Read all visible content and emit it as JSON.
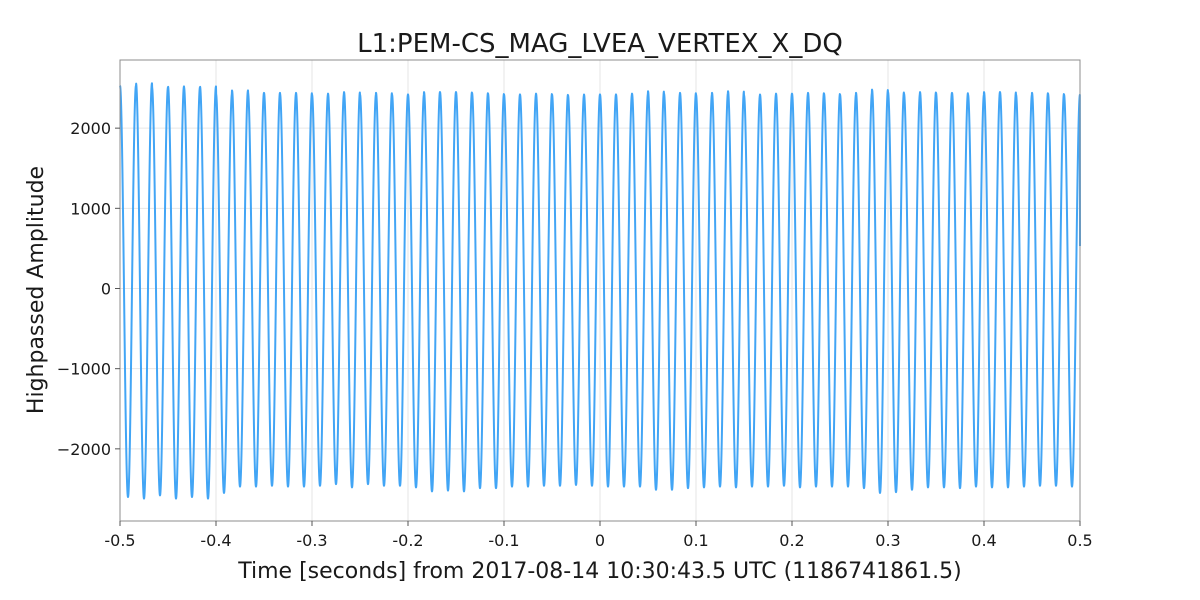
{
  "chart_data": {
    "type": "line",
    "title": "L1:PEM-CS_MAG_LVEA_VERTEX_X_DQ",
    "xlabel": "Time [seconds] from 2017-08-14 10:30:43.5 UTC (1186741861.5)",
    "ylabel": "Highpassed Amplitude",
    "xlim": [
      -0.5,
      0.5
    ],
    "ylim": [
      -2900,
      2850
    ],
    "xticks": [
      {
        "value": -0.5,
        "label": "-0.5"
      },
      {
        "value": -0.4,
        "label": "-0.4"
      },
      {
        "value": -0.3,
        "label": "-0.3"
      },
      {
        "value": -0.2,
        "label": "-0.2"
      },
      {
        "value": -0.1,
        "label": "-0.1"
      },
      {
        "value": 0,
        "label": "0"
      },
      {
        "value": 0.1,
        "label": "0.1"
      },
      {
        "value": 0.2,
        "label": "0.2"
      },
      {
        "value": 0.3,
        "label": "0.3"
      },
      {
        "value": 0.4,
        "label": "0.4"
      },
      {
        "value": 0.5,
        "label": "0.5"
      }
    ],
    "yticks": [
      {
        "value": -2000,
        "label": "−2000"
      },
      {
        "value": -1000,
        "label": "−1000"
      },
      {
        "value": 0,
        "label": "0"
      },
      {
        "value": 1000,
        "label": "1000"
      },
      {
        "value": 2000,
        "label": "2000"
      }
    ],
    "grid": true,
    "series": [
      {
        "color": "#42a5f5",
        "frequency_hz": 60,
        "amplitude": 2450,
        "peak_values": [
          2530,
          2560,
          2510,
          2520,
          2510,
          2520,
          2430,
          2470,
          2440,
          2440,
          2430,
          2440,
          2420,
          2430,
          2450,
          2420,
          2440,
          2420,
          2420,
          2450,
          2450,
          2450,
          2440,
          2430,
          2420,
          2420,
          2430,
          2420,
          2410,
          2420,
          2420,
          2420,
          2430,
          2460,
          2430,
          2440,
          2420,
          2440,
          2460,
          2410,
          2420,
          2430,
          2430,
          2440,
          2430,
          2420,
          2440,
          2480,
          2450,
          2430,
          2450,
          2440,
          2440,
          2420,
          2450,
          2450,
          2420,
          2440,
          2430,
          2420
        ],
        "trough_values": [
          -2600,
          -2620,
          -2580,
          -2620,
          -2600,
          -2620,
          -2550,
          -2470,
          -2470,
          -2460,
          -2470,
          -2470,
          -2460,
          -2440,
          -2480,
          -2440,
          -2460,
          -2460,
          -2480,
          -2530,
          -2520,
          -2530,
          -2490,
          -2490,
          -2470,
          -2470,
          -2460,
          -2460,
          -2450,
          -2460,
          -2470,
          -2470,
          -2470,
          -2510,
          -2510,
          -2490,
          -2480,
          -2470,
          -2480,
          -2470,
          -2470,
          -2460,
          -2480,
          -2470,
          -2470,
          -2470,
          -2490,
          -2550,
          -2540,
          -2510,
          -2480,
          -2480,
          -2490,
          -2470,
          -2480,
          -2480,
          -2470,
          -2460,
          -2460,
          -2470
        ],
        "end_value": 530
      }
    ]
  }
}
